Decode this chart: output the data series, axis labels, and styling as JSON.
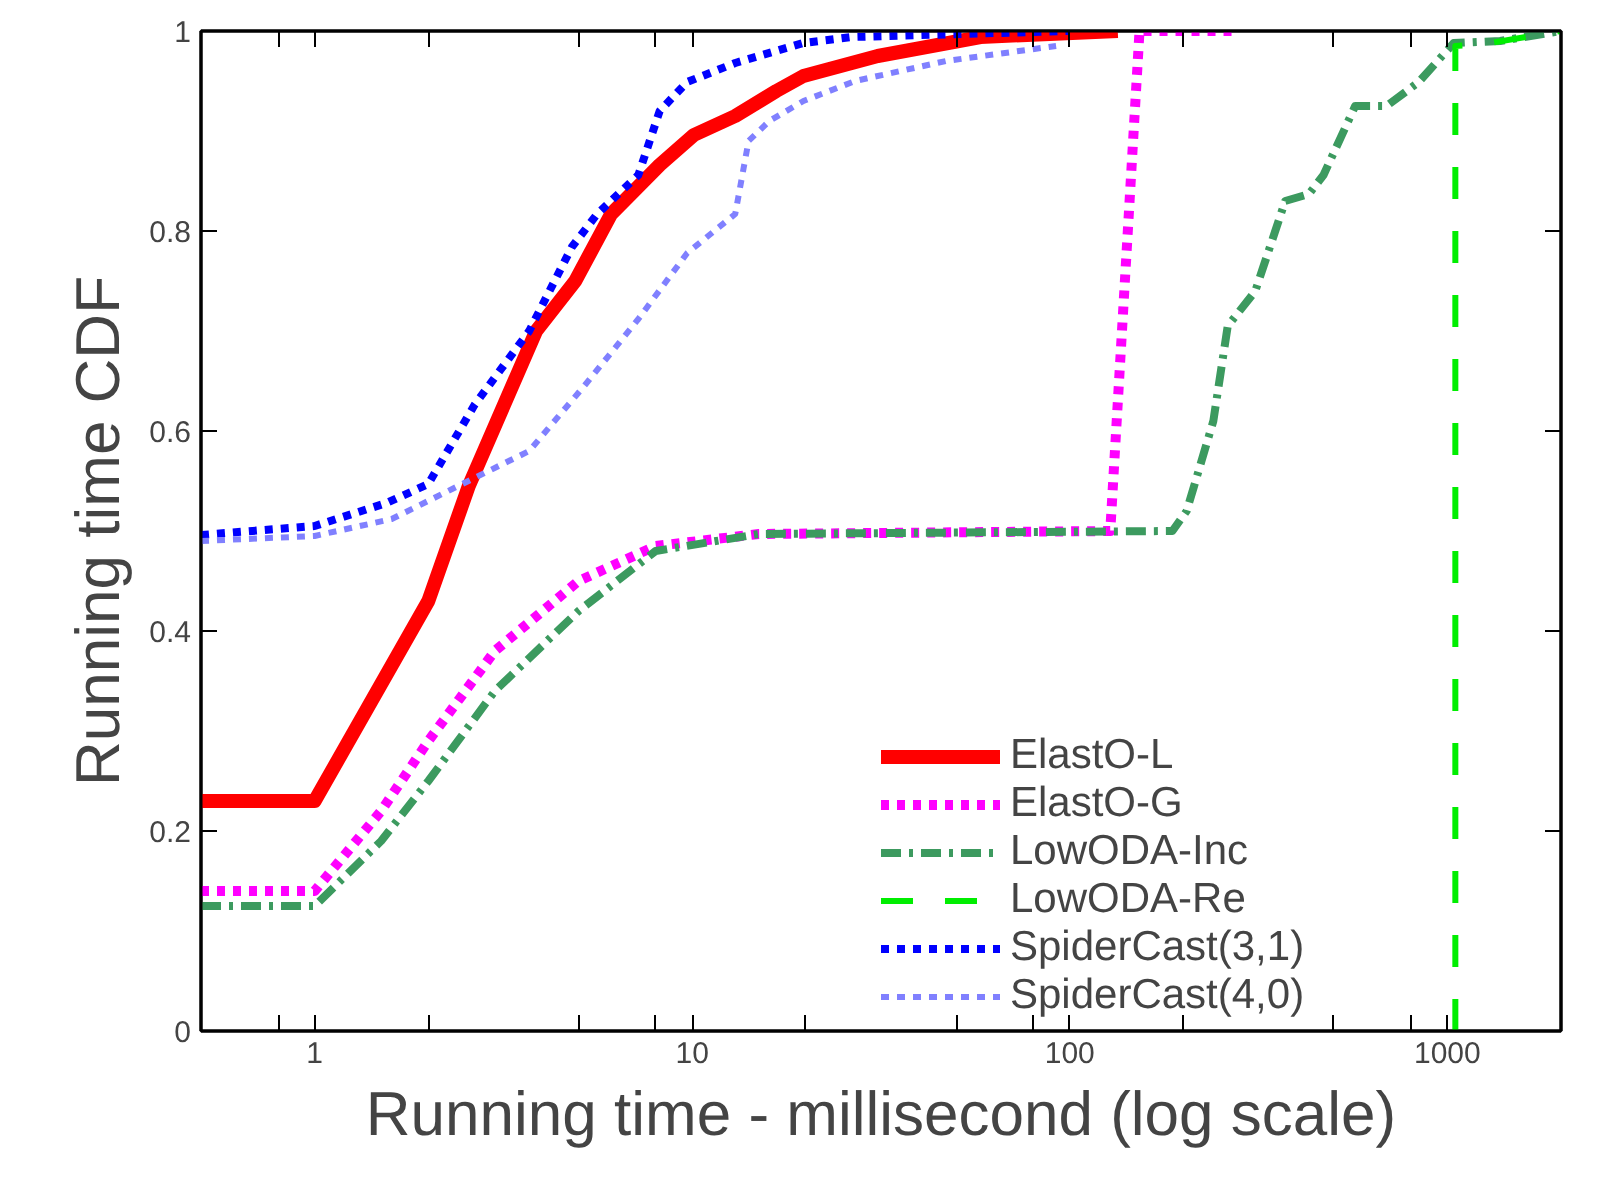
{
  "chart_data": {
    "type": "line",
    "xlabel": "Running time - millisecond (log scale)",
    "ylabel": "Running time CDF",
    "log": "x",
    "xlim": [
      0.5,
      2000
    ],
    "ylim": [
      0,
      1
    ],
    "xticks": [
      {
        "value": 0.8,
        "label": null
      },
      1,
      {
        "value": 2,
        "label": null
      },
      {
        "value": 5,
        "label": null
      },
      {
        "value": 8,
        "label": null
      },
      10,
      {
        "value": 20,
        "label": null
      },
      {
        "value": 50,
        "label": null
      },
      {
        "value": 80,
        "label": null
      },
      100,
      {
        "value": 200,
        "label": null
      },
      {
        "value": 500,
        "label": null
      },
      {
        "value": 800,
        "label": null
      },
      1000
    ],
    "yticks": [
      0,
      0.2,
      0.4,
      0.6,
      0.8,
      1
    ],
    "grid": false,
    "legend": "bottom right",
    "marker": "none",
    "series": [
      {
        "name": "ElastO-L",
        "color": "#ff0000",
        "line_style": "solid",
        "x": [
          0.5,
          1,
          2,
          2.56,
          3.86,
          4.9,
          6.1,
          8.2,
          10.1,
          13,
          16.7,
          19.7,
          31,
          58,
          134
        ],
        "values": [
          0.23,
          0.23,
          0.43,
          0.545,
          0.7,
          0.75,
          0.817,
          0.866,
          0.896,
          0.915,
          0.94,
          0.955,
          0.975,
          0.994,
          1.0
        ]
      },
      {
        "name": "ElastO-G",
        "color": "#ff00ff",
        "line_style": "dotted",
        "x": [
          0.5,
          1,
          1.5,
          2,
          3,
          5,
          8,
          15,
          128,
          153,
          272
        ],
        "values": [
          0.14,
          0.14,
          0.22,
          0.29,
          0.38,
          0.45,
          0.485,
          0.497,
          0.5,
          1.0,
          1.0
        ]
      },
      {
        "name": "LowODA-Inc",
        "color": "#3c9a5f",
        "line_style": "dashdot",
        "x": [
          0.5,
          1,
          1.5,
          2,
          3,
          5,
          8,
          15,
          187,
          204,
          240,
          262,
          310,
          372,
          430,
          470,
          570,
          690,
          840,
          1040,
          1380,
          2000
        ],
        "values": [
          0.125,
          0.125,
          0.19,
          0.25,
          0.34,
          0.42,
          0.48,
          0.497,
          0.5,
          0.52,
          0.61,
          0.705,
          0.74,
          0.83,
          0.837,
          0.856,
          0.925,
          0.925,
          0.949,
          0.988,
          0.99,
          1.0
        ]
      },
      {
        "name": "LowODA-Re",
        "color": "#00ee00",
        "line_style": "dashed",
        "x": [
          1050,
          1050,
          1300,
          2000
        ],
        "values": [
          0,
          0.985,
          0.988,
          1.0
        ]
      },
      {
        "name": "SpiderCast(3,1)",
        "color": "#0000ff",
        "line_style": "dotted",
        "x": [
          0.5,
          1,
          1.55,
          2.0,
          2.65,
          3.7,
          4.8,
          5.6,
          7.2,
          8.2,
          9.7,
          13,
          19.7,
          26.5,
          100
        ],
        "values": [
          0.496,
          0.505,
          0.528,
          0.547,
          0.626,
          0.7,
          0.784,
          0.817,
          0.856,
          0.92,
          0.949,
          0.968,
          0.988,
          0.994,
          1.0
        ]
      },
      {
        "name": "SpiderCast(4,0)",
        "color": "#8080ff",
        "line_style": "dotted",
        "x": [
          0.5,
          1,
          1.6,
          2.46,
          3.7,
          5.2,
          7.2,
          9.7,
          13,
          14.1,
          16,
          19.7,
          27,
          47,
          92
        ],
        "values": [
          0.49,
          0.495,
          0.512,
          0.547,
          0.58,
          0.646,
          0.712,
          0.778,
          0.817,
          0.89,
          0.91,
          0.93,
          0.95,
          0.97,
          0.985
        ]
      }
    ]
  }
}
